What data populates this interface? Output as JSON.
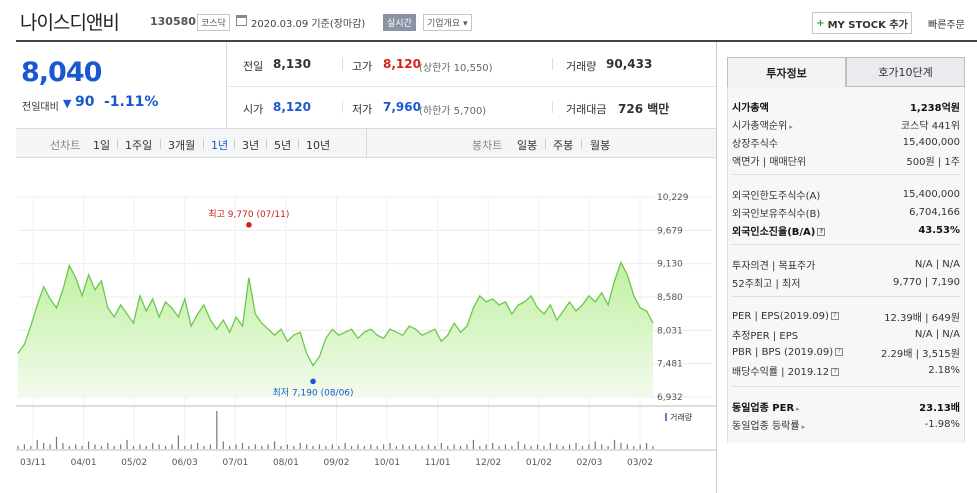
{
  "header": {
    "stock_name": "나이스디앤비",
    "stock_code": "130580",
    "market": "코스닥",
    "date_text": "2020.03.09 기준(장마감)",
    "realtime": "실시간",
    "company_overview": "기업개요",
    "mystock_label": "MY STOCK 추가",
    "quick_order": "빠른주문"
  },
  "price": {
    "current": "8,040",
    "change_label": "전일대비",
    "change_value": "90",
    "change_pct": "-1.11%"
  },
  "quote": {
    "prev_label": "전일",
    "prev_value": "8,130",
    "high_label": "고가",
    "high_value": "8,120",
    "upper_limit": "(상한가 10,550)",
    "volume_label": "거래량",
    "volume_value": "90,433",
    "open_label": "시가",
    "open_value": "8,120",
    "low_label": "저가",
    "low_value": "7,960",
    "lower_limit": "(하한가 5,700)",
    "amount_label": "거래대금",
    "amount_value": "726 백만"
  },
  "period_bar": {
    "line_chart_label": "선차트",
    "periods": [
      "1일",
      "1주일",
      "3개월",
      "1년",
      "3년",
      "5년",
      "10년"
    ],
    "active_period": "1년",
    "candle_label": "봉차트",
    "candles": [
      "일봉",
      "주봉",
      "월봉"
    ]
  },
  "chart_data": {
    "type": "area",
    "y_ticks": [
      "10,229",
      "9,679",
      "9,130",
      "8,580",
      "8,031",
      "7,481",
      "6,932"
    ],
    "ylim": [
      6932,
      10229
    ],
    "x_ticks": [
      "03/11",
      "04/01",
      "05/02",
      "06/03",
      "07/01",
      "08/01",
      "09/02",
      "10/01",
      "11/01",
      "12/02",
      "01/02",
      "02/03",
      "03/02"
    ],
    "high_annotation": "최고 9,770 (07/11)",
    "low_annotation": "최저 7,190 (08/06)",
    "high_value": 9770,
    "low_value": 7190,
    "volume_label": "거래량",
    "values": [
      7650,
      7800,
      8100,
      8450,
      8750,
      8550,
      8400,
      8700,
      9100,
      8900,
      8600,
      8950,
      8700,
      8850,
      8400,
      8250,
      8450,
      8300,
      8150,
      8600,
      8350,
      8550,
      8250,
      8500,
      8400,
      8250,
      8550,
      8100,
      8300,
      8450,
      8200,
      8050,
      8200,
      8000,
      8250,
      8100,
      8900,
      8300,
      8150,
      8050,
      7950,
      8050,
      7850,
      7950,
      8000,
      7650,
      7450,
      7600,
      7900,
      8050,
      7950,
      8000,
      8050,
      7900,
      8000,
      8050,
      7950,
      7900,
      8050,
      8000,
      7950,
      8100,
      8050,
      7950,
      8000,
      8050,
      7850,
      7950,
      8150,
      8000,
      8100,
      8400,
      8600,
      8500,
      8550,
      8450,
      8500,
      8300,
      8450,
      8500,
      8600,
      8400,
      8300,
      8450,
      8200,
      8350,
      8500,
      8350,
      8450,
      8600,
      8500,
      8650,
      8450,
      8850,
      9150,
      8950,
      8600,
      8400,
      8350,
      8150
    ],
    "volumes": [
      2,
      3,
      2,
      6,
      4,
      3,
      8,
      4,
      2,
      3,
      2,
      5,
      3,
      2,
      4,
      2,
      3,
      6,
      2,
      3,
      2,
      4,
      3,
      2,
      3,
      9,
      2,
      3,
      4,
      2,
      3,
      25,
      5,
      2,
      3,
      4,
      2,
      3,
      2,
      3,
      5,
      2,
      3,
      2,
      4,
      3,
      2,
      3,
      2,
      3,
      2,
      4,
      2,
      3,
      2,
      3,
      2,
      3,
      4,
      2,
      3,
      2,
      3,
      2,
      3,
      2,
      4,
      2,
      3,
      2,
      3,
      6,
      2,
      3,
      4,
      2,
      3,
      2,
      5,
      3,
      2,
      3,
      2,
      4,
      3,
      2,
      3,
      4,
      2,
      3,
      5,
      3,
      2,
      6,
      4,
      3,
      2,
      3,
      4,
      2
    ]
  },
  "right_panel": {
    "tab_active": "투자정보",
    "tab_inactive": "호가10단계",
    "rows": [
      {
        "label": "시가총액",
        "value": "1,238억원",
        "bold": true
      },
      {
        "label": "시가총액순위",
        "value": "코스닥 441위"
      },
      {
        "label": "상장주식수",
        "value": "15,400,000"
      },
      {
        "label": "액면가 | 매매단위",
        "value": "500원 | 1주"
      },
      {
        "label": "외국인한도주식수(A)",
        "value": "15,400,000"
      },
      {
        "label": "외국인보유주식수(B)",
        "value": "6,704,166"
      },
      {
        "label": "외국인소진율(B/A)",
        "value": "43.53%",
        "bold": true
      },
      {
        "label": "투자의견 | 목표주가",
        "value": "N/A | N/A"
      },
      {
        "label": "52주최고 | 최저",
        "value": "9,770 | 7,190"
      },
      {
        "label": "PER | EPS(2019.09)",
        "value": "12.39배 | 649원"
      },
      {
        "label": "추정PER | EPS",
        "value": "N/A | N/A"
      },
      {
        "label": "PBR | BPS (2019.09)",
        "value": "2.29배 | 3,515원"
      },
      {
        "label": "배당수익률 | 2019.12",
        "value": "2.18%"
      },
      {
        "label": "동일업종 PER",
        "value": "23.13배",
        "bold": true
      },
      {
        "label": "동일업종 등락률",
        "value": "-1.98%"
      }
    ]
  },
  "colors": {
    "down_blue": "#1a58d1",
    "up_red": "#d5211d",
    "line_green": "#6cc84a",
    "fill_green": "#d9f5c5"
  }
}
